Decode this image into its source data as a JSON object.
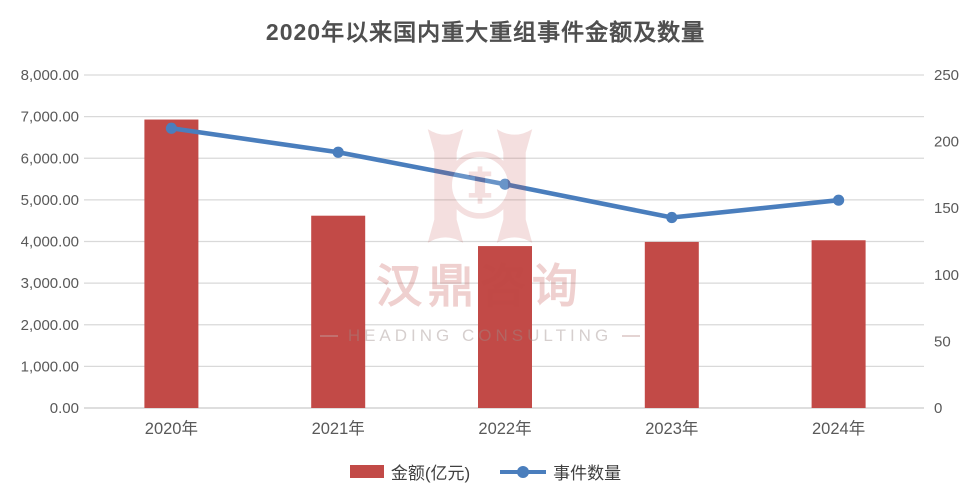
{
  "title": "2020年以来国内重大重组事件金额及数量",
  "watermark": {
    "cn": "汉鼎咨询",
    "en": "HEADING CONSULTING"
  },
  "legend": [
    {
      "label": "金额(亿元)",
      "type": "bar"
    },
    {
      "label": "事件数量",
      "type": "line"
    }
  ],
  "colors": {
    "bar": "#C24A47",
    "line": "#4A7EBD",
    "grid": "#D9D9D9",
    "zero_line": "#C9C9C9",
    "axis_text": "#595959",
    "title_text": "#4F4F4F",
    "watermark_red": "#C04846"
  },
  "chart_data": {
    "type": "bar",
    "subtype": "combo-bar-line-dual-axis",
    "title": "2020年以来国内重大重组事件金额及数量",
    "categories": [
      "2020年",
      "2021年",
      "2022年",
      "2023年",
      "2024年"
    ],
    "series": [
      {
        "name": "金额(亿元)",
        "type": "bar",
        "axis": "left",
        "color": "#C24A47",
        "values": [
          6930,
          4620,
          3890,
          3990,
          4030
        ]
      },
      {
        "name": "事件数量",
        "type": "line",
        "axis": "right",
        "color": "#4A7EBD",
        "values": [
          210,
          192,
          168,
          143,
          156
        ]
      }
    ],
    "left_axis": {
      "min": 0,
      "max": 8000,
      "step": 1000,
      "ticks": [
        "0.00",
        "1,000.00",
        "2,000.00",
        "3,000.00",
        "4,000.00",
        "5,000.00",
        "6,000.00",
        "7,000.00",
        "8,000.00"
      ]
    },
    "right_axis": {
      "min": 0,
      "max": 250,
      "step": 50,
      "ticks": [
        "0",
        "50",
        "100",
        "150",
        "200",
        "250"
      ]
    },
    "grid": true,
    "legend_position": "bottom"
  }
}
